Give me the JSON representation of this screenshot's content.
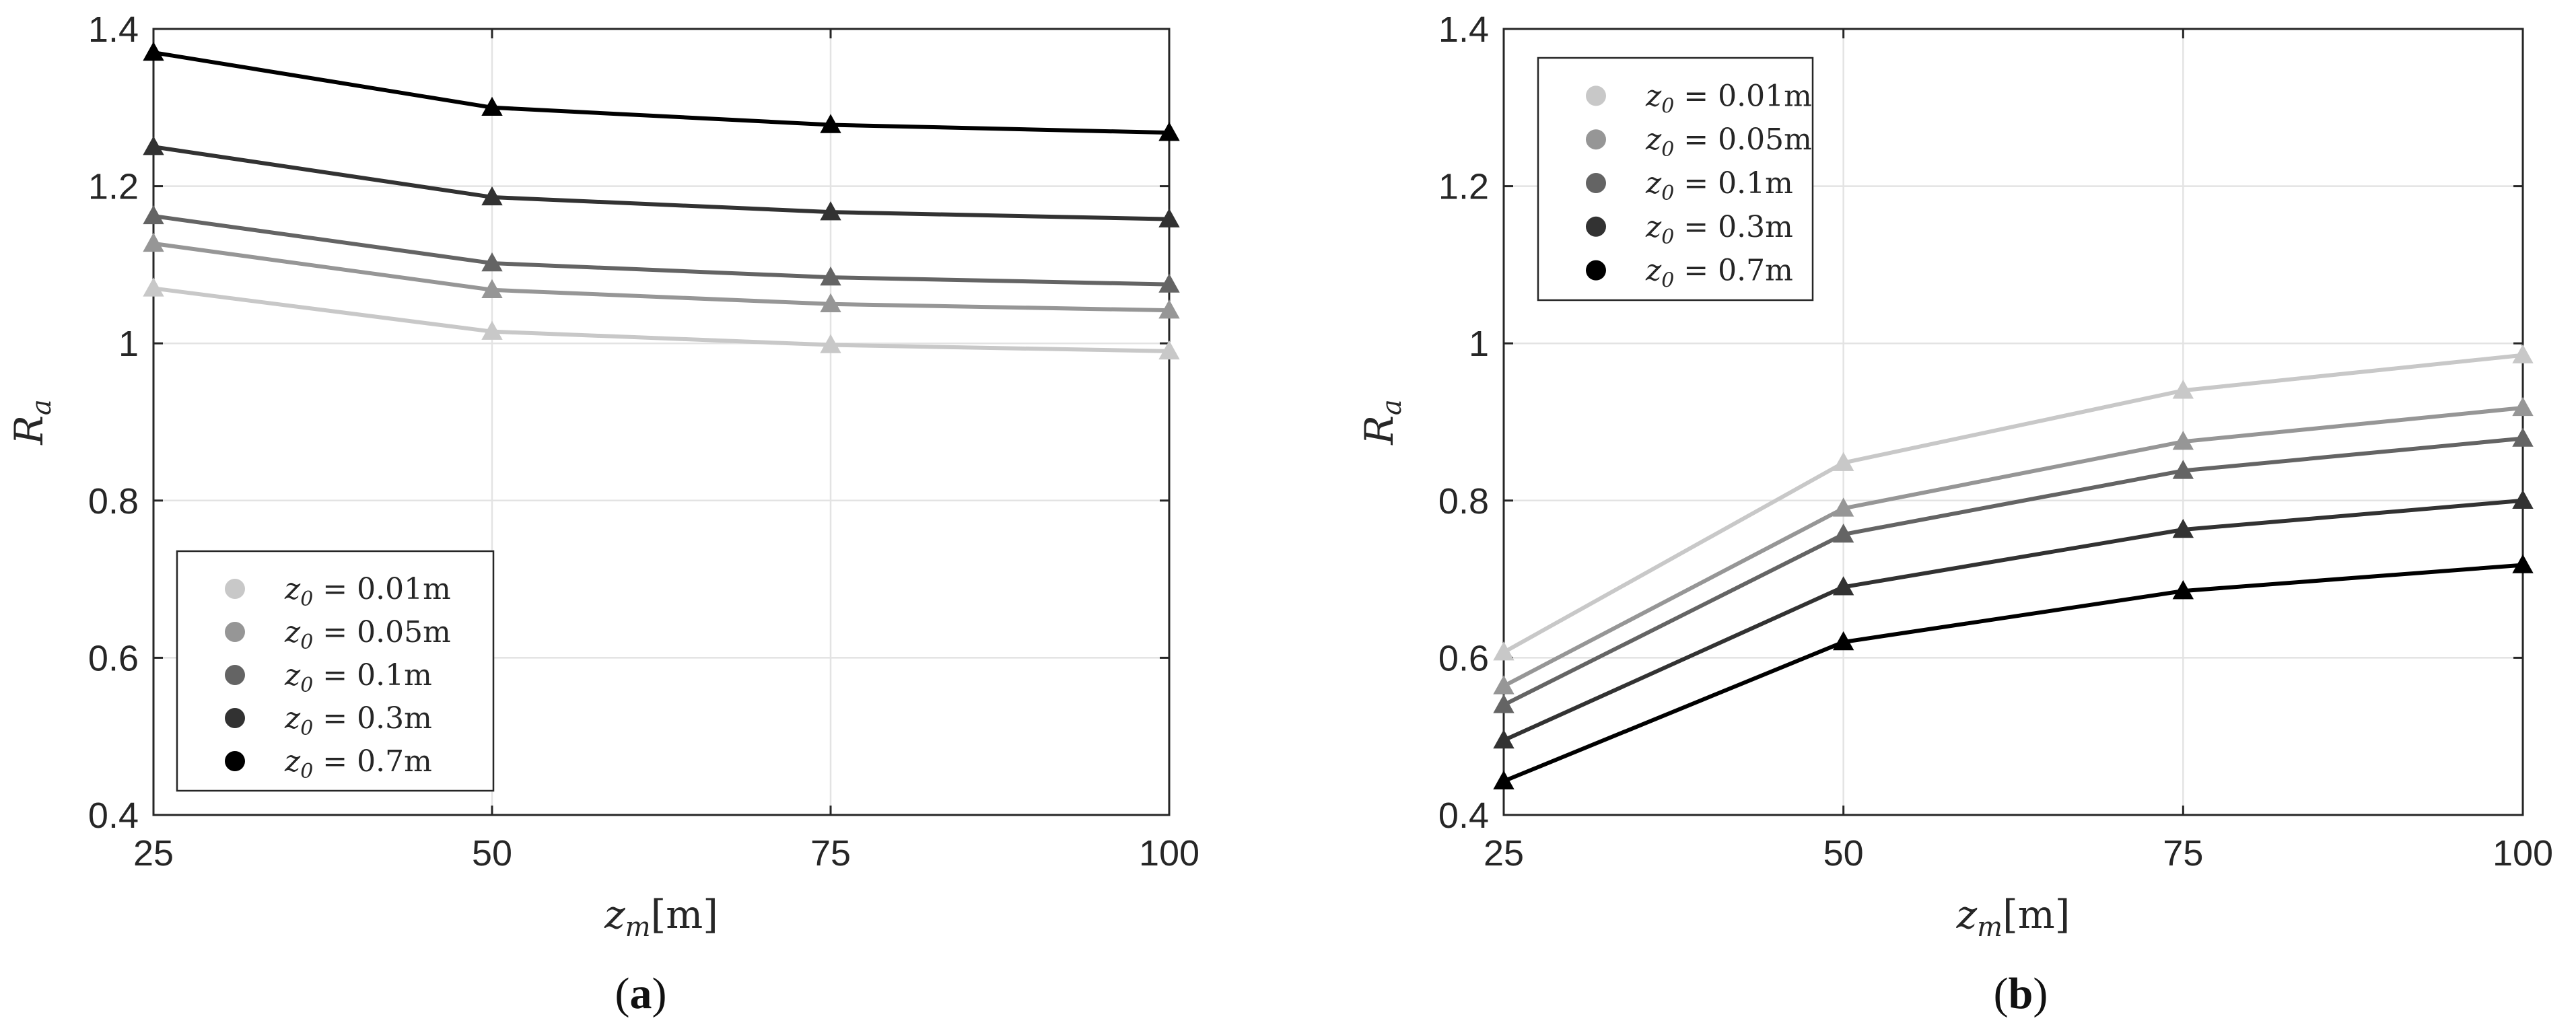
{
  "chart_data": [
    {
      "type": "line",
      "panel": "a",
      "xlabel": "z_m[m]",
      "ylabel": "R_a",
      "xlim": [
        25,
        100
      ],
      "ylim": [
        0.4,
        1.4
      ],
      "x": [
        25,
        50,
        75,
        100
      ],
      "xticks": [
        "25",
        "50",
        "75",
        "100"
      ],
      "yticks": [
        "0.4",
        "0.6",
        "0.8",
        "1",
        "1.2",
        "1.4"
      ],
      "grid": true,
      "legend_position": "lower-left",
      "series": [
        {
          "name": "z_0 = 0.01m",
          "color": "#c8c8c8",
          "values": [
            1.07,
            1.015,
            0.998,
            0.99
          ]
        },
        {
          "name": "z_0 = 0.05m",
          "color": "#969696",
          "values": [
            1.127,
            1.068,
            1.05,
            1.042
          ]
        },
        {
          "name": "z_0 = 0.1m",
          "color": "#646464",
          "values": [
            1.162,
            1.102,
            1.084,
            1.075
          ]
        },
        {
          "name": "z_0 = 0.3m",
          "color": "#323232",
          "values": [
            1.25,
            1.186,
            1.167,
            1.158
          ]
        },
        {
          "name": "z_0 = 0.7m",
          "color": "#000000",
          "values": [
            1.37,
            1.3,
            1.278,
            1.268
          ]
        }
      ]
    },
    {
      "type": "line",
      "panel": "b",
      "xlabel": "z_m[m]",
      "ylabel": "R_a",
      "xlim": [
        25,
        100
      ],
      "ylim": [
        0.4,
        1.4
      ],
      "x": [
        25,
        50,
        75,
        100
      ],
      "xticks": [
        "25",
        "50",
        "75",
        "100"
      ],
      "yticks": [
        "0.4",
        "0.6",
        "0.8",
        "1",
        "1.2",
        "1.4"
      ],
      "grid": true,
      "legend_position": "top-left",
      "series": [
        {
          "name": "z_0 = 0.01m",
          "color": "#c8c8c8",
          "values": [
            0.607,
            0.848,
            0.94,
            0.985
          ]
        },
        {
          "name": "z_0 = 0.05m",
          "color": "#969696",
          "values": [
            0.564,
            0.79,
            0.875,
            0.918
          ]
        },
        {
          "name": "z_0 = 0.1m",
          "color": "#646464",
          "values": [
            0.54,
            0.757,
            0.838,
            0.879
          ]
        },
        {
          "name": "z_0 = 0.3m",
          "color": "#323232",
          "values": [
            0.495,
            0.69,
            0.763,
            0.8
          ]
        },
        {
          "name": "z_0 = 0.7m",
          "color": "#000000",
          "values": [
            0.443,
            0.62,
            0.685,
            0.718
          ]
        }
      ]
    }
  ],
  "captions": [
    "(a)",
    "(b)"
  ]
}
